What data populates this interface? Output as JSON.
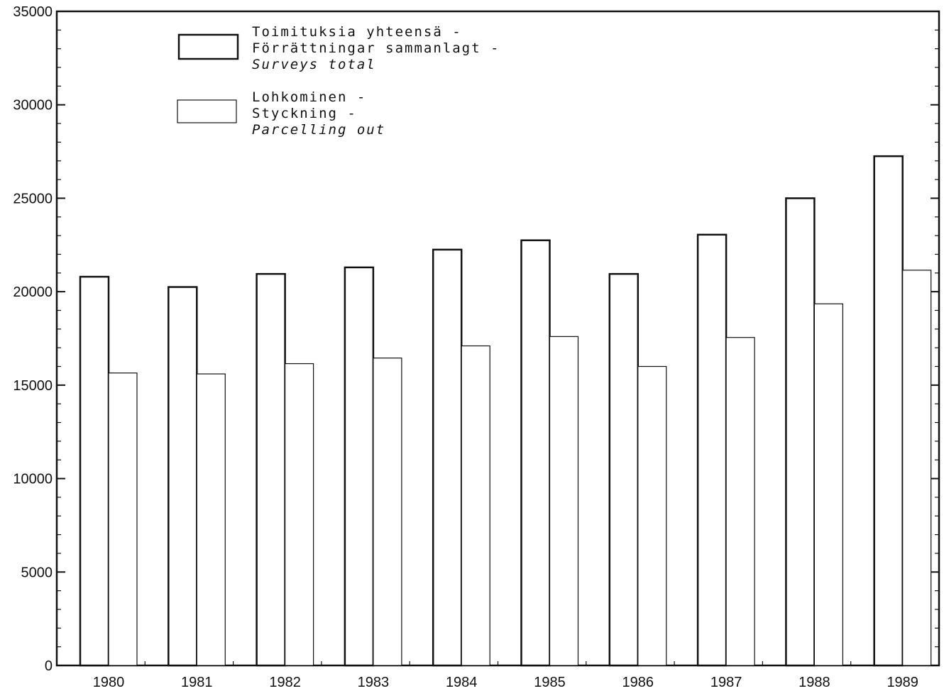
{
  "chart_data": {
    "type": "bar",
    "title": "",
    "xlabel": "",
    "ylabel": "",
    "categories": [
      "1980",
      "1981",
      "1982",
      "1983",
      "1984",
      "1985",
      "1986",
      "1987",
      "1988",
      "1989"
    ],
    "series": [
      {
        "name": "Toimituksia yhteensä - Förrättningar sammanlagt - Surveys total",
        "name_lines": [
          "Toimituksia yhteensä -",
          "Förrättningar sammanlagt -",
          "Surveys total"
        ],
        "values": [
          20800,
          20250,
          20950,
          21300,
          22250,
          22750,
          20950,
          23050,
          25000,
          27250
        ]
      },
      {
        "name": "Lohkominen - Styckning - Parcelling out",
        "name_lines": [
          "Lohkominen -",
          "Styckning -",
          "Parcelling out"
        ],
        "values": [
          15650,
          15600,
          16150,
          16450,
          17100,
          17600,
          16000,
          17550,
          19350,
          21150
        ]
      }
    ],
    "ylim": [
      0,
      35000
    ],
    "yticks": [
      "0",
      "5000",
      "10000",
      "15000",
      "20000",
      "25000",
      "30000",
      "35000"
    ],
    "legend_position": "top-left",
    "grid": false
  }
}
